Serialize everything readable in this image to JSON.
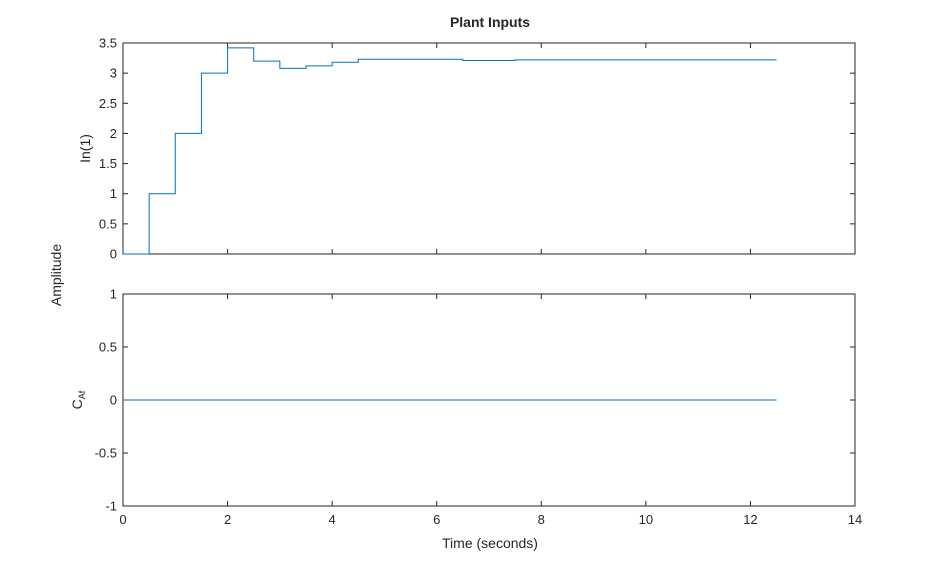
{
  "chart_data": {
    "type": "line",
    "title": "Plant Inputs",
    "xlabel": "Time (seconds)",
    "ylabel": "Amplitude",
    "xlim": [
      0,
      14
    ],
    "xticks": [
      "0",
      "2",
      "4",
      "6",
      "8",
      "10",
      "12",
      "14"
    ],
    "line_color": "#0072BD",
    "grid": false,
    "subplots": [
      {
        "ylabel": "In(1)",
        "ylim": [
          0,
          3.5
        ],
        "yticks": [
          "0",
          "0.5",
          "1",
          "1.5",
          "2",
          "2.5",
          "3",
          "3.5"
        ],
        "series": [
          {
            "style": "stairs",
            "x": [
              0,
              0.5,
              1,
              1.5,
              2,
              2.5,
              3,
              3.5,
              4,
              4.5,
              5,
              5.5,
              6,
              6.5,
              7,
              7.5,
              8,
              8.5,
              9,
              9.5,
              10,
              10.5,
              11,
              11.5,
              12,
              12.5
            ],
            "values": [
              0,
              1,
              2,
              3,
              3.42,
              3.2,
              3.08,
              3.12,
              3.18,
              3.23,
              3.23,
              3.23,
              3.23,
              3.21,
              3.21,
              3.22,
              3.22,
              3.22,
              3.22,
              3.22,
              3.22,
              3.22,
              3.22,
              3.22,
              3.22,
              3.22
            ]
          }
        ]
      },
      {
        "ylabel_main": "C",
        "ylabel_sub": "Af",
        "ylim": [
          -1,
          1
        ],
        "yticks": [
          "-1",
          "-0.5",
          "0",
          "0.5",
          "1"
        ],
        "series": [
          {
            "style": "line",
            "x": [
              0,
              12.5
            ],
            "values": [
              0,
              0
            ]
          }
        ]
      }
    ]
  }
}
